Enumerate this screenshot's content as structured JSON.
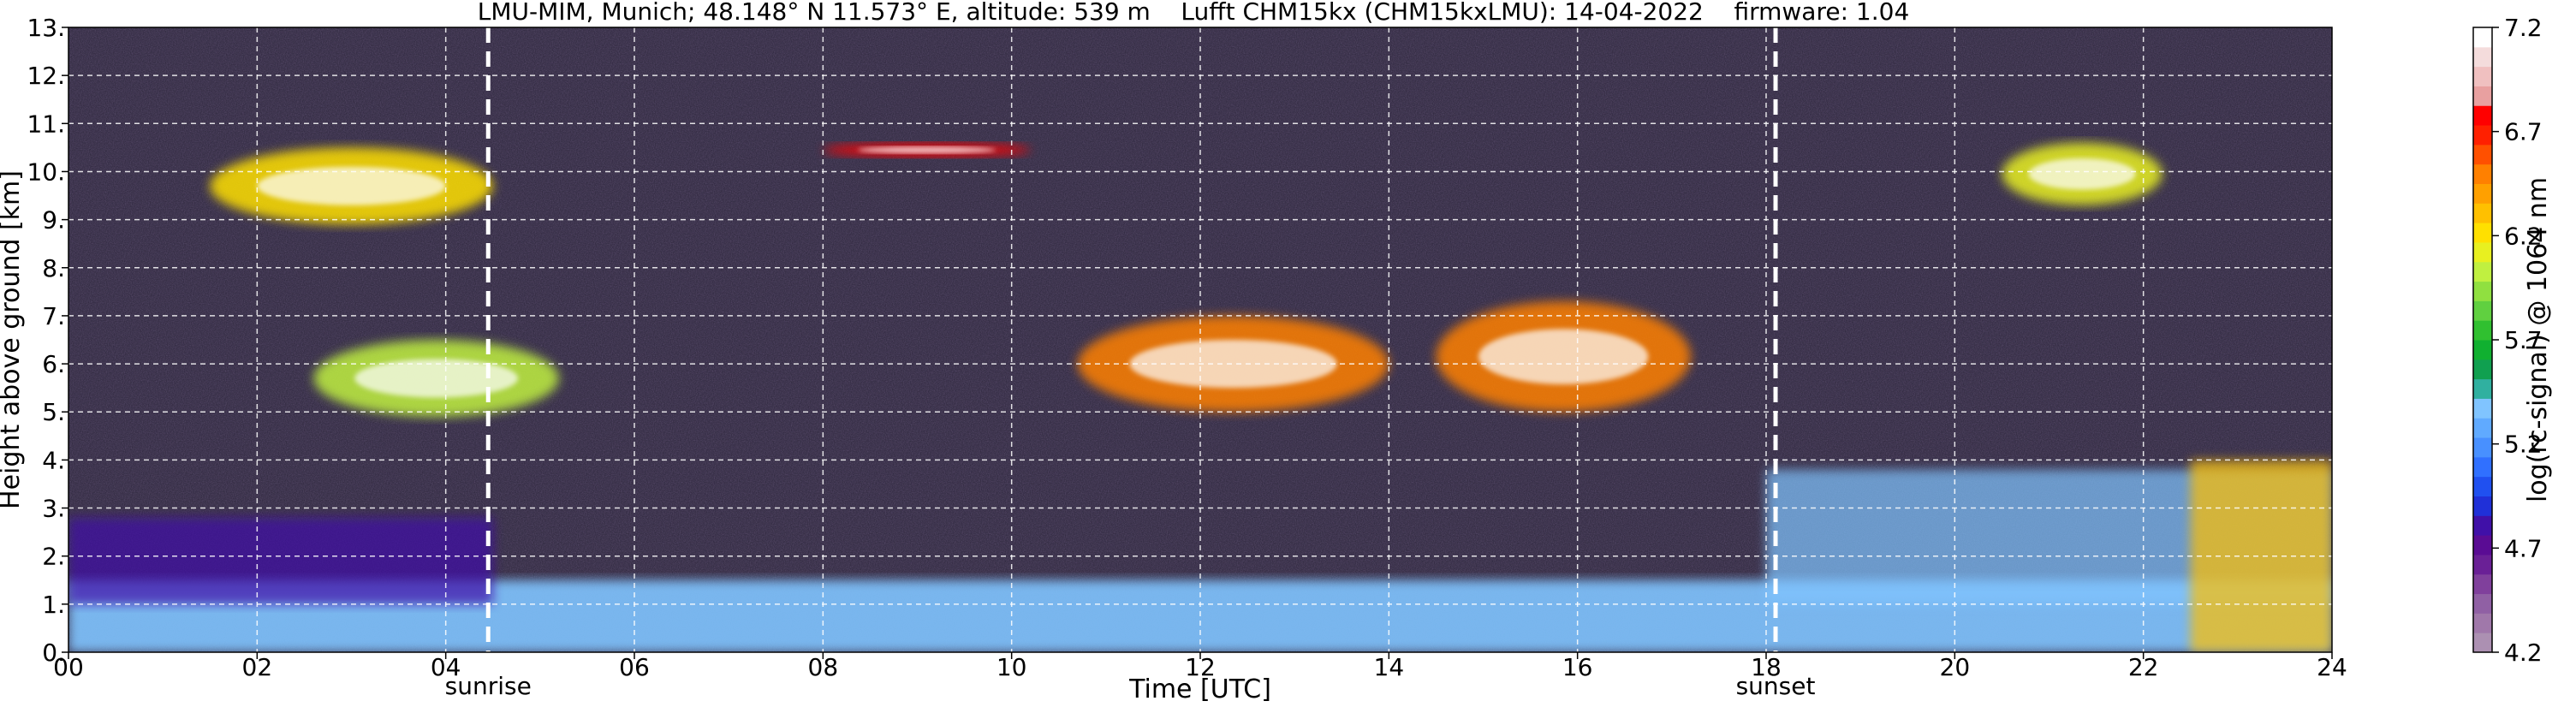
{
  "chart_data": {
    "type": "heatmap",
    "title": "LMU-MIM, Munich; 48.148° N 11.573° E, altitude: 539 m    Lufft CHM15kx (CHM15kxLMU): 14-04-2022    firmware: 1.04",
    "xlabel": "Time [UTC]",
    "ylabel": "Height above ground [km]",
    "xlim": [
      0,
      24
    ],
    "ylim": [
      0,
      13
    ],
    "x_ticks": [
      0,
      2,
      4,
      6,
      8,
      10,
      12,
      14,
      16,
      18,
      20,
      22,
      24
    ],
    "x_tick_labels": [
      "00",
      "02",
      "04",
      "06",
      "08",
      "10",
      "12",
      "14",
      "16",
      "18",
      "20",
      "22",
      "24"
    ],
    "y_ticks": [
      0,
      1,
      2,
      3,
      4,
      5,
      6,
      7,
      8,
      9,
      10,
      11,
      12,
      13
    ],
    "y_tick_labels": [
      "0.",
      "1.",
      "2.",
      "3.",
      "4.",
      "5.",
      "6.",
      "7.",
      "8.",
      "9.",
      "10.",
      "11.",
      "12.",
      "13."
    ],
    "grid": true,
    "markers": [
      {
        "label": "sunrise",
        "x": 4.45
      },
      {
        "label": "sunset",
        "x": 18.1
      }
    ],
    "colorbar": {
      "label": "log(rc-signal) @ 1064 nm",
      "range": [
        4.2,
        7.2
      ],
      "ticks": [
        4.2,
        4.7,
        5.2,
        5.7,
        6.2,
        6.7,
        7.2
      ],
      "tick_labels": [
        "4.2",
        "4.7",
        "5.2",
        "5.7",
        "6.2",
        "6.7",
        "7.2"
      ],
      "colors": [
        "#ac90b2",
        "#a078aa",
        "#9060a4",
        "#80409c",
        "#6a2096",
        "#5a0c94",
        "#4010a8",
        "#2030d8",
        "#2050f0",
        "#3070ff",
        "#4890ff",
        "#60aaff",
        "#80c4ff",
        "#30b0a0",
        "#10a050",
        "#10b030",
        "#30c030",
        "#60d040",
        "#90e040",
        "#c0f040",
        "#e8f020",
        "#ffe000",
        "#ffc000",
        "#ffa000",
        "#ff8000",
        "#ff5000",
        "#ff2000",
        "#ff0000",
        "#e8a0a0",
        "#f0c0c0",
        "#f4dcdc",
        "#ffffff"
      ]
    },
    "features": [
      {
        "kind": "boundary-layer",
        "x": [
          0,
          24
        ],
        "y": [
          0,
          1.5
        ],
        "value": 5.4
      },
      {
        "kind": "residual-layer",
        "x": [
          0,
          4.5
        ],
        "y": [
          1.0,
          2.8
        ],
        "value": 4.8
      },
      {
        "kind": "cloud",
        "x": [
          1.5,
          4.5
        ],
        "y": [
          8.9,
          10.5
        ],
        "value": 6.2
      },
      {
        "kind": "cloud",
        "x": [
          2.6,
          5.2
        ],
        "y": [
          4.9,
          6.5
        ],
        "value": 6.0
      },
      {
        "kind": "cloud",
        "x": [
          8.0,
          10.2
        ],
        "y": [
          10.3,
          10.6
        ],
        "value": 6.8
      },
      {
        "kind": "cloud",
        "x": [
          10.7,
          14.0
        ],
        "y": [
          5.0,
          7.0
        ],
        "value": 6.5
      },
      {
        "kind": "cloud",
        "x": [
          14.5,
          17.2
        ],
        "y": [
          5.0,
          7.3
        ],
        "value": 6.5
      },
      {
        "kind": "cloud",
        "x": [
          20.5,
          22.2
        ],
        "y": [
          9.3,
          10.6
        ],
        "value": 6.1
      },
      {
        "kind": "aerosol-layer",
        "x": [
          18.0,
          24.0
        ],
        "y": [
          1.0,
          3.8
        ],
        "value": 5.4
      },
      {
        "kind": "low-cloud",
        "x": [
          22.5,
          24.0
        ],
        "y": [
          0.0,
          4.0
        ],
        "value": 6.3
      }
    ]
  }
}
